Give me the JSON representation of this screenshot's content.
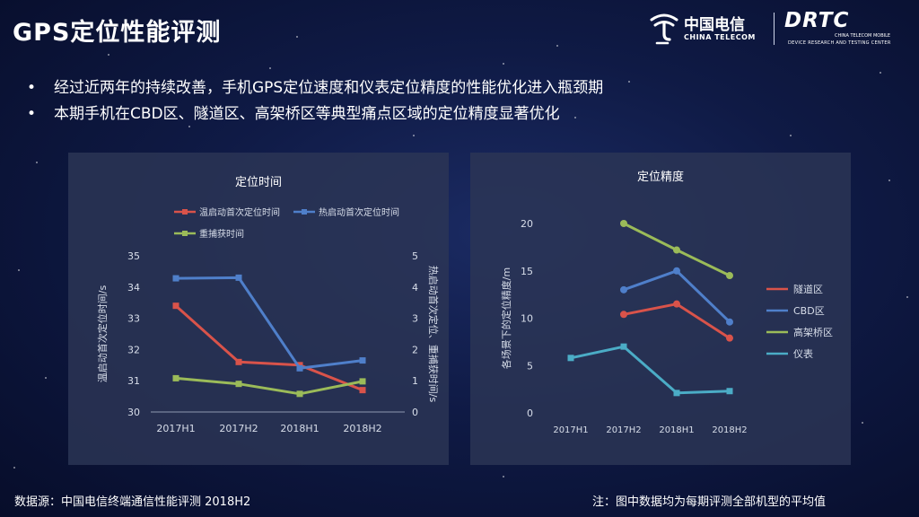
{
  "title": "GPS定位性能评测",
  "logos": {
    "china_telecom_cn": "中国电信",
    "china_telecom_en": "CHINA TELECOM",
    "drtc": "DRTC",
    "drtc_line1": "CHINA TELECOM MOBILE",
    "drtc_line2": "DEVICE RESEARCH AND TESTING CENTER"
  },
  "bullets": [
    "经过近两年的持续改善，手机GPS定位速度和仪表定位精度的性能优化进入瓶颈期",
    "本期手机在CBD区、隧道区、高架桥区等典型痛点区域的定位精度显著优化"
  ],
  "bullet_symbol": "•",
  "footer": {
    "source": "数据源：中国电信终端通信性能评测 2018H2",
    "note": "注：图中数据均为每期评测全部机型的平均值"
  },
  "colors": {
    "red": "#d9534a",
    "blue": "#4f7fca",
    "green": "#9bbb59",
    "cyan": "#4bacc6"
  },
  "chart_data": [
    {
      "type": "line",
      "title": "定位时间",
      "categories": [
        "2017H1",
        "2017H2",
        "2018H1",
        "2018H2"
      ],
      "ylabel_left": "温启动首次定位时间/s",
      "ylabel_right": "热启动首次定位、重捕获时间/s",
      "ylim_left": [
        30,
        35
      ],
      "ylim_right": [
        0,
        5
      ],
      "yticks_left": [
        "30",
        "31",
        "32",
        "33",
        "34",
        "35"
      ],
      "yticks_right": [
        "0",
        "1",
        "2",
        "3",
        "4",
        "5"
      ],
      "legend_position": "top",
      "grid": false,
      "series": [
        {
          "name": "温启动首次定位时间",
          "axis": "left",
          "color": "#d9534a",
          "values": [
            33.4,
            31.6,
            31.5,
            30.7
          ]
        },
        {
          "name": "热启动首次定位时间",
          "axis": "right",
          "color": "#4f7fca",
          "values": [
            4.28,
            4.3,
            1.4,
            1.65
          ]
        },
        {
          "name": "重捕获时间",
          "axis": "right",
          "color": "#9bbb59",
          "values": [
            1.08,
            0.9,
            0.58,
            0.98
          ]
        }
      ]
    },
    {
      "type": "line",
      "title": "定位精度",
      "categories": [
        "2017H1",
        "2017H2",
        "2018H1",
        "2018H2"
      ],
      "ylabel": "各场景下的定位精度/m",
      "ylim": [
        0,
        20
      ],
      "yticks": [
        "0",
        "5",
        "10",
        "15",
        "20"
      ],
      "legend_position": "right",
      "grid": false,
      "series": [
        {
          "name": "隧道区",
          "color": "#d9534a",
          "values": [
            null,
            10.4,
            11.5,
            7.9
          ]
        },
        {
          "name": "CBD区",
          "color": "#4f7fca",
          "values": [
            null,
            13.0,
            15.0,
            9.6
          ]
        },
        {
          "name": "高架桥区",
          "color": "#9bbb59",
          "values": [
            null,
            20.0,
            17.2,
            14.5
          ]
        },
        {
          "name": "仪表",
          "color": "#4bacc6",
          "values": [
            5.8,
            7.0,
            2.1,
            2.3
          ]
        }
      ]
    }
  ]
}
